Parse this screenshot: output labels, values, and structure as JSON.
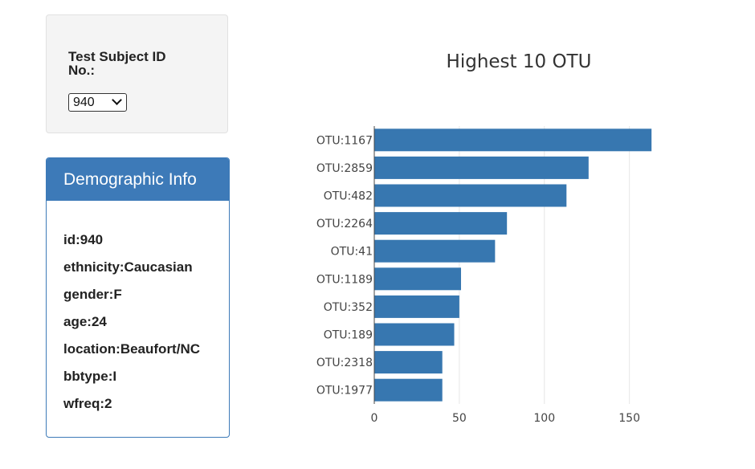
{
  "selector": {
    "label": "Test Subject ID No.:",
    "selected": "940"
  },
  "demographics": {
    "title": "Demographic Info",
    "lines": [
      "id:940",
      "ethnicity:Caucasian",
      "gender:F",
      "age:24",
      "location:Beaufort/NC",
      "bbtype:I",
      "wfreq:2"
    ]
  },
  "chart_data": {
    "type": "bar",
    "orientation": "horizontal",
    "title": "Highest 10 OTU",
    "xlabel": "",
    "ylabel": "",
    "categories": [
      "OTU:1167",
      "OTU:2859",
      "OTU:482",
      "OTU:2264",
      "OTU:41",
      "OTU:1189",
      "OTU:352",
      "OTU:189",
      "OTU:2318",
      "OTU:1977"
    ],
    "values": [
      163,
      126,
      113,
      78,
      71,
      51,
      50,
      47,
      40,
      40
    ],
    "xlim": [
      0,
      170
    ],
    "xticks": [
      0,
      50,
      100,
      150
    ],
    "grid": true,
    "bar_color": "#3777b0"
  }
}
